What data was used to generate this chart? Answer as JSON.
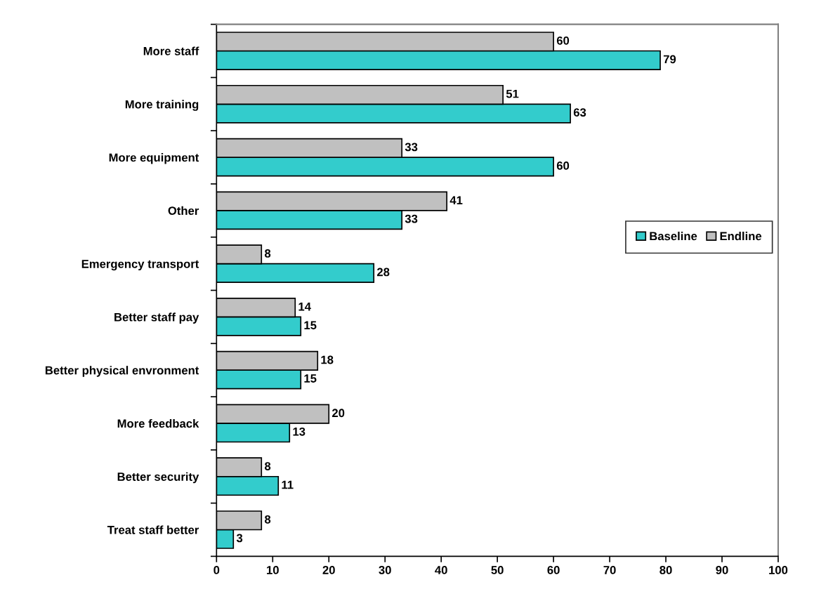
{
  "chart_data": {
    "type": "bar",
    "orientation": "horizontal",
    "categories": [
      "More staff",
      "More training",
      "More equipment",
      "Other",
      "Emergency transport",
      "Better staff pay",
      "Better physical envronment",
      "More feedback",
      "Better security",
      "Treat staff better"
    ],
    "series": [
      {
        "name": "Baseline",
        "color": "#33cccc",
        "values": [
          79,
          63,
          60,
          33,
          28,
          15,
          15,
          13,
          11,
          3
        ]
      },
      {
        "name": "Endline",
        "color": "#c0c0c0",
        "values": [
          60,
          51,
          33,
          41,
          8,
          14,
          18,
          20,
          8,
          8
        ]
      }
    ],
    "xlim": [
      0,
      100
    ],
    "xticks": [
      0,
      10,
      20,
      30,
      40,
      50,
      60,
      70,
      80,
      90,
      100
    ],
    "data_labels": true,
    "legend": "right",
    "grid": false
  }
}
